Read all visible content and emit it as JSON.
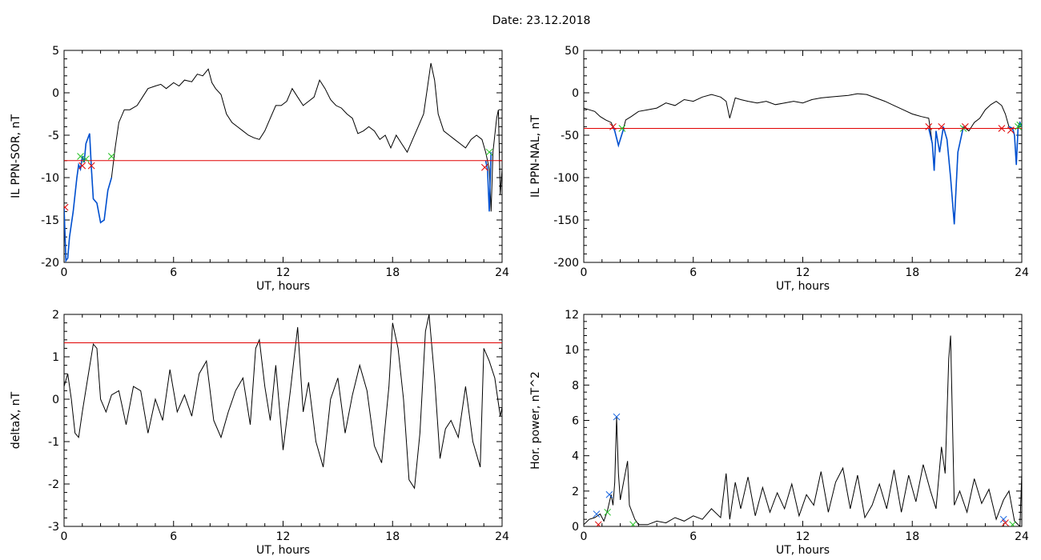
{
  "header": {
    "date_label": "Date:  23.12.2018"
  },
  "colors": {
    "data": "#000000",
    "threshold": "#e00000",
    "substorm": "#0050d0",
    "marker_red": "#e00000",
    "marker_green": "#20c020",
    "marker_blue": "#1060e0"
  },
  "chart_data": [
    {
      "id": "p1",
      "type": "line",
      "xlabel": "UT, hours",
      "ylabel": "IL PPN-SOR, nT",
      "xlim": [
        0,
        24
      ],
      "ylim": [
        -20,
        5
      ],
      "xticks": [
        0,
        6,
        12,
        18,
        24
      ],
      "yticks": [
        -20,
        -15,
        -10,
        -5,
        0,
        5
      ],
      "threshold": -8,
      "series": [
        {
          "role": "data",
          "x": [
            0,
            0.1,
            0.2,
            0.3,
            0.5,
            0.7,
            0.8,
            0.9,
            1.0,
            1.1,
            1.2,
            1.4,
            1.5,
            1.6,
            1.8,
            2.0,
            2.2,
            2.4,
            2.6,
            2.8,
            3.0,
            3.3,
            3.6,
            4.0,
            4.3,
            4.6,
            5.0,
            5.3,
            5.6,
            6.0,
            6.3,
            6.6,
            7.0,
            7.3,
            7.6,
            7.9,
            8.1,
            8.3,
            8.6,
            8.9,
            9.2,
            9.5,
            9.8,
            10.1,
            10.4,
            10.7,
            11.0,
            11.3,
            11.6,
            11.9,
            12.2,
            12.5,
            12.8,
            13.1,
            13.4,
            13.7,
            14.0,
            14.3,
            14.6,
            14.9,
            15.2,
            15.5,
            15.8,
            16.1,
            16.4,
            16.7,
            17.0,
            17.3,
            17.6,
            17.9,
            18.2,
            18.5,
            18.8,
            19.1,
            19.4,
            19.7,
            19.9,
            20.1,
            20.3,
            20.5,
            20.8,
            21.1,
            21.4,
            21.7,
            22.0,
            22.3,
            22.6,
            22.9,
            23.1,
            23.2,
            23.3,
            23.4,
            23.5,
            23.6,
            23.7,
            23.8,
            23.9,
            24.0
          ],
          "y": [
            -13.5,
            -19.8,
            -19.5,
            -17,
            -14,
            -10,
            -8.5,
            -9,
            -7.5,
            -8.2,
            -6,
            -4.8,
            -9,
            -12.5,
            -13,
            -15.3,
            -15,
            -11.5,
            -10,
            -6.5,
            -3.5,
            -2,
            -2,
            -1.5,
            -0.5,
            0.5,
            0.8,
            1,
            0.5,
            1.2,
            0.8,
            1.5,
            1.3,
            2.2,
            2,
            2.8,
            1.2,
            0.5,
            -0.2,
            -2.5,
            -3.5,
            -4,
            -4.5,
            -5,
            -5.3,
            -5.5,
            -4.5,
            -3,
            -1.5,
            -1.5,
            -1,
            0.5,
            -0.5,
            -1.5,
            -1,
            -0.5,
            1.5,
            0.5,
            -0.8,
            -1.5,
            -1.8,
            -2.5,
            -3,
            -4.8,
            -4.5,
            -4,
            -4.5,
            -5.5,
            -5,
            -6.5,
            -5,
            -6,
            -7,
            -5.5,
            -4,
            -2.5,
            0.5,
            3.5,
            1.5,
            -2.5,
            -4.5,
            -5,
            -5.5,
            -6,
            -6.5,
            -5.5,
            -5,
            -5.5,
            -7,
            -8,
            -9,
            -14,
            -7,
            -5,
            -3,
            -2,
            -12,
            -9
          ]
        },
        {
          "role": "substorm",
          "segments": [
            {
              "x": [
                0,
                0.1,
                0.2,
                0.3,
                0.5,
                0.7,
                0.8,
                0.9,
                1.0,
                1.1,
                1.2,
                1.4,
                1.5,
                1.6,
                1.8,
                2.0,
                2.2,
                2.4,
                2.6
              ],
              "y": [
                -13.5,
                -19.8,
                -19.5,
                -17,
                -14,
                -10,
                -8.5,
                -9,
                -7.5,
                -8.2,
                -6,
                -4.8,
                -9,
                -12.5,
                -13,
                -15.3,
                -15,
                -11.5,
                -10
              ]
            },
            {
              "x": [
                23.1,
                23.2,
                23.3,
                23.4
              ],
              "y": [
                -8,
                -9,
                -14,
                -7
              ]
            }
          ]
        }
      ],
      "markers": [
        {
          "x": 0.9,
          "y": -7.5,
          "color": "green"
        },
        {
          "x": 1.2,
          "y": -7.8,
          "color": "green"
        },
        {
          "x": 2.6,
          "y": -7.5,
          "color": "green"
        },
        {
          "x": 1.0,
          "y": -8.6,
          "color": "red"
        },
        {
          "x": 1.5,
          "y": -8.6,
          "color": "red"
        },
        {
          "x": 23.05,
          "y": -8.8,
          "color": "red"
        },
        {
          "x": 23.3,
          "y": -7,
          "color": "green"
        },
        {
          "x": 0.05,
          "y": -13.5,
          "color": "red"
        }
      ]
    },
    {
      "id": "p2",
      "type": "line",
      "xlabel": "UT, hours",
      "ylabel": "IL PPN-NAL, nT",
      "xlim": [
        0,
        24
      ],
      "ylim": [
        -200,
        50
      ],
      "xticks": [
        0,
        6,
        12,
        18,
        24
      ],
      "yticks": [
        -200,
        -150,
        -100,
        -50,
        0,
        50
      ],
      "threshold": -42,
      "series": [
        {
          "role": "data",
          "x": [
            0,
            0.3,
            0.6,
            0.9,
            1.2,
            1.5,
            1.7,
            1.9,
            2.1,
            2.3,
            2.6,
            3.0,
            3.5,
            4.0,
            4.5,
            5.0,
            5.5,
            6.0,
            6.5,
            7.0,
            7.5,
            7.8,
            8.0,
            8.3,
            8.6,
            9.0,
            9.5,
            10.0,
            10.5,
            11.0,
            11.5,
            12.0,
            12.5,
            13.0,
            13.5,
            14.0,
            14.5,
            15.0,
            15.5,
            16.0,
            16.5,
            17.0,
            17.5,
            18.0,
            18.5,
            18.9,
            19.1,
            19.2,
            19.3,
            19.5,
            19.7,
            19.9,
            20.1,
            20.3,
            20.5,
            20.8,
            21.1,
            21.4,
            21.7,
            22.0,
            22.3,
            22.6,
            22.9,
            23.1,
            23.3,
            23.5,
            23.6,
            23.7,
            23.8,
            23.9,
            24.0
          ],
          "y": [
            -18,
            -20,
            -22,
            -28,
            -32,
            -35,
            -45,
            -62,
            -48,
            -32,
            -28,
            -22,
            -20,
            -18,
            -12,
            -15,
            -8,
            -10,
            -5,
            -2,
            -5,
            -10,
            -30,
            -6,
            -8,
            -10,
            -12,
            -10,
            -14,
            -12,
            -10,
            -12,
            -8,
            -6,
            -5,
            -4,
            -3,
            -1,
            -2,
            -6,
            -10,
            -15,
            -20,
            -25,
            -28,
            -30,
            -60,
            -92,
            -45,
            -70,
            -40,
            -55,
            -100,
            -155,
            -70,
            -40,
            -45,
            -35,
            -30,
            -20,
            -14,
            -10,
            -15,
            -25,
            -40,
            -42,
            -50,
            -85,
            -40,
            -35,
            -40
          ]
        },
        {
          "role": "substorm",
          "segments": [
            {
              "x": [
                1.6,
                1.7,
                1.9,
                2.1,
                2.2
              ],
              "y": [
                -40,
                -45,
                -62,
                -48,
                -42
              ]
            },
            {
              "x": [
                18.9,
                19.1,
                19.2,
                19.3,
                19.5,
                19.7,
                19.9,
                20.1,
                20.3,
                20.5,
                20.8
              ],
              "y": [
                -42,
                -60,
                -92,
                -45,
                -70,
                -40,
                -55,
                -100,
                -155,
                -70,
                -40
              ]
            },
            {
              "x": [
                23.3,
                23.5,
                23.6,
                23.7,
                23.8,
                23.9,
                24.0
              ],
              "y": [
                -40,
                -42,
                -50,
                -85,
                -40,
                -35,
                -40
              ]
            }
          ]
        }
      ],
      "markers": [
        {
          "x": 1.6,
          "y": -40,
          "color": "red"
        },
        {
          "x": 2.1,
          "y": -42,
          "color": "green"
        },
        {
          "x": 18.9,
          "y": -40,
          "color": "red"
        },
        {
          "x": 19.6,
          "y": -40,
          "color": "red"
        },
        {
          "x": 20.8,
          "y": -42,
          "color": "green"
        },
        {
          "x": 20.9,
          "y": -40,
          "color": "red"
        },
        {
          "x": 22.9,
          "y": -42,
          "color": "red"
        },
        {
          "x": 23.4,
          "y": -44,
          "color": "red"
        },
        {
          "x": 23.8,
          "y": -40,
          "color": "green"
        },
        {
          "x": 23.9,
          "y": -38,
          "color": "green"
        }
      ]
    },
    {
      "id": "p3",
      "type": "line",
      "xlabel": "UT, hours",
      "ylabel": "deltaX, nT",
      "xlim": [
        0,
        24
      ],
      "ylim": [
        -3,
        2
      ],
      "xticks": [
        0,
        6,
        12,
        18,
        24
      ],
      "yticks": [
        -3,
        -2,
        -1,
        0,
        1,
        2
      ],
      "threshold": 1.33,
      "series": [
        {
          "role": "data",
          "x": [
            0,
            0.2,
            0.4,
            0.6,
            0.8,
            1.0,
            1.3,
            1.6,
            1.8,
            2.0,
            2.3,
            2.6,
            3.0,
            3.4,
            3.8,
            4.2,
            4.6,
            5.0,
            5.4,
            5.8,
            6.2,
            6.6,
            7.0,
            7.4,
            7.8,
            8.2,
            8.6,
            9.0,
            9.4,
            9.8,
            10.2,
            10.5,
            10.7,
            11.0,
            11.3,
            11.6,
            12.0,
            12.4,
            12.8,
            13.1,
            13.4,
            13.8,
            14.2,
            14.6,
            15.0,
            15.4,
            15.8,
            16.2,
            16.6,
            17.0,
            17.4,
            17.8,
            18.0,
            18.3,
            18.6,
            18.9,
            19.2,
            19.5,
            19.8,
            20.0,
            20.3,
            20.6,
            20.9,
            21.2,
            21.6,
            22.0,
            22.4,
            22.8,
            23.0,
            23.3,
            23.6,
            23.9,
            24.0
          ],
          "y": [
            0.3,
            0.6,
            0,
            -0.8,
            -0.9,
            -0.3,
            0.5,
            1.3,
            1.2,
            0,
            -0.3,
            0.1,
            0.2,
            -0.6,
            0.3,
            0.2,
            -0.8,
            0,
            -0.5,
            0.7,
            -0.3,
            0.1,
            -0.4,
            0.6,
            0.9,
            -0.5,
            -0.9,
            -0.3,
            0.2,
            0.5,
            -0.6,
            1.2,
            1.4,
            0.3,
            -0.5,
            0.8,
            -1.2,
            0.2,
            1.7,
            -0.3,
            0.4,
            -1.0,
            -1.6,
            0,
            0.5,
            -0.8,
            0.1,
            0.8,
            0.2,
            -1.1,
            -1.5,
            0.3,
            1.8,
            1.2,
            0,
            -1.9,
            -2.1,
            -0.8,
            1.6,
            2.0,
            0.5,
            -1.4,
            -0.7,
            -0.5,
            -0.9,
            0.3,
            -1.0,
            -1.6,
            1.2,
            0.9,
            0.5,
            -0.4,
            -0.2
          ]
        }
      ],
      "markers": []
    },
    {
      "id": "p4",
      "type": "line",
      "xlabel": "UT, hours",
      "ylabel": "Hor. power, nT^2",
      "xlim": [
        0,
        24
      ],
      "ylim": [
        0,
        12
      ],
      "xticks": [
        0,
        6,
        12,
        18,
        24
      ],
      "yticks": [
        0,
        2,
        4,
        6,
        8,
        10,
        12
      ],
      "threshold": null,
      "series": [
        {
          "role": "data",
          "x": [
            0,
            0.3,
            0.6,
            0.9,
            1.1,
            1.3,
            1.5,
            1.6,
            1.7,
            1.8,
            1.9,
            2.0,
            2.2,
            2.4,
            2.5,
            2.8,
            3.0,
            3.5,
            4.0,
            4.5,
            5.0,
            5.5,
            6.0,
            6.5,
            7.0,
            7.5,
            7.8,
            8.0,
            8.3,
            8.6,
            9.0,
            9.4,
            9.8,
            10.2,
            10.6,
            11.0,
            11.4,
            11.8,
            12.2,
            12.6,
            13.0,
            13.4,
            13.8,
            14.2,
            14.6,
            15.0,
            15.4,
            15.8,
            16.2,
            16.6,
            17.0,
            17.4,
            17.8,
            18.2,
            18.6,
            19.0,
            19.3,
            19.6,
            19.8,
            20.0,
            20.1,
            20.3,
            20.6,
            21.0,
            21.4,
            21.8,
            22.2,
            22.6,
            23.0,
            23.3,
            23.6,
            23.9,
            24.0
          ],
          "y": [
            0.1,
            0.4,
            0.5,
            0.7,
            0.3,
            0.9,
            1.8,
            1.2,
            2.5,
            6.2,
            3.0,
            1.5,
            2.6,
            3.7,
            1.2,
            0.4,
            0.1,
            0.1,
            0.3,
            0.2,
            0.5,
            0.3,
            0.6,
            0.4,
            1.0,
            0.5,
            3.0,
            0.4,
            2.5,
            1.0,
            2.8,
            0.6,
            2.2,
            0.8,
            1.9,
            1.0,
            2.4,
            0.6,
            1.8,
            1.2,
            3.1,
            0.8,
            2.5,
            3.3,
            1.0,
            2.9,
            0.5,
            1.2,
            2.4,
            1.0,
            3.2,
            0.8,
            2.9,
            1.4,
            3.5,
            2.0,
            1.0,
            4.5,
            3.0,
            9.5,
            10.8,
            1.2,
            2.0,
            0.8,
            2.7,
            1.3,
            2.1,
            0.4,
            1.5,
            2.0,
            0.3,
            0.0,
            3.0
          ]
        }
      ],
      "markers": [
        {
          "x": 0.7,
          "y": 0.7,
          "color": "blue"
        },
        {
          "x": 0.8,
          "y": 0.1,
          "color": "red"
        },
        {
          "x": 1.4,
          "y": 1.8,
          "color": "blue"
        },
        {
          "x": 1.3,
          "y": 0.8,
          "color": "green"
        },
        {
          "x": 1.8,
          "y": 6.2,
          "color": "blue"
        },
        {
          "x": 2.7,
          "y": 0.1,
          "color": "green"
        },
        {
          "x": 23.0,
          "y": 0.4,
          "color": "blue"
        },
        {
          "x": 23.1,
          "y": 0.2,
          "color": "red"
        },
        {
          "x": 23.5,
          "y": 0.1,
          "color": "green"
        }
      ]
    }
  ]
}
